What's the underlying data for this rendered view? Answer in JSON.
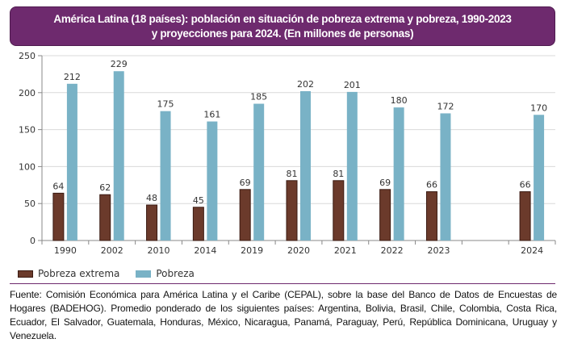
{
  "title": {
    "line1": "América Latina (18 países): población en situación de pobreza extrema y pobreza, 1990-2023",
    "line2": "y proyecciones para 2024. (En millones de personas)"
  },
  "colors": {
    "title_bg": "#6e2a6e",
    "extreme": "#6b3a2b",
    "extreme_border": "#3a1a12",
    "poverty": "#79b2c6",
    "grid": "#d9d9d9",
    "axis": "#888888"
  },
  "chart_data": {
    "type": "bar",
    "title": "América Latina (18 países): población en situación de pobreza extrema y pobreza, 1990-2023 y proyecciones para 2024. (En millones de personas)",
    "xlabel": "",
    "ylabel": "",
    "ylim": [
      0,
      250
    ],
    "yticks": [
      0,
      50,
      100,
      150,
      200,
      250
    ],
    "grid": true,
    "legend_position": "bottom-left",
    "categories": [
      "1990",
      "2002",
      "2010",
      "2014",
      "2019",
      "2020",
      "2021",
      "2022",
      "2023",
      "",
      "2024"
    ],
    "series": [
      {
        "name": "Pobreza extrema",
        "color": "#6b3a2b",
        "values": [
          64,
          62,
          48,
          45,
          69,
          81,
          81,
          69,
          66,
          null,
          66
        ]
      },
      {
        "name": "Pobreza",
        "color": "#79b2c6",
        "values": [
          212,
          229,
          175,
          161,
          185,
          202,
          201,
          180,
          172,
          null,
          170
        ]
      }
    ]
  },
  "legend": [
    {
      "label": "Pobreza extrema"
    },
    {
      "label": "Pobreza"
    }
  ],
  "footer": "Fuente: Comisión Económica para América Latina y el Caribe (CEPAL), sobre la base del Banco de Datos de Encuestas de Hogares (BADEHOG). Promedio ponderado de los siguientes países: Argentina, Bolivia, Brasil, Chile, Colombia, Costa Rica, Ecuador, El Salvador, Guatemala, Honduras, México, Nicaragua, Panamá, Paraguay, Perú, República Dominicana, Uruguay y Venezuela."
}
